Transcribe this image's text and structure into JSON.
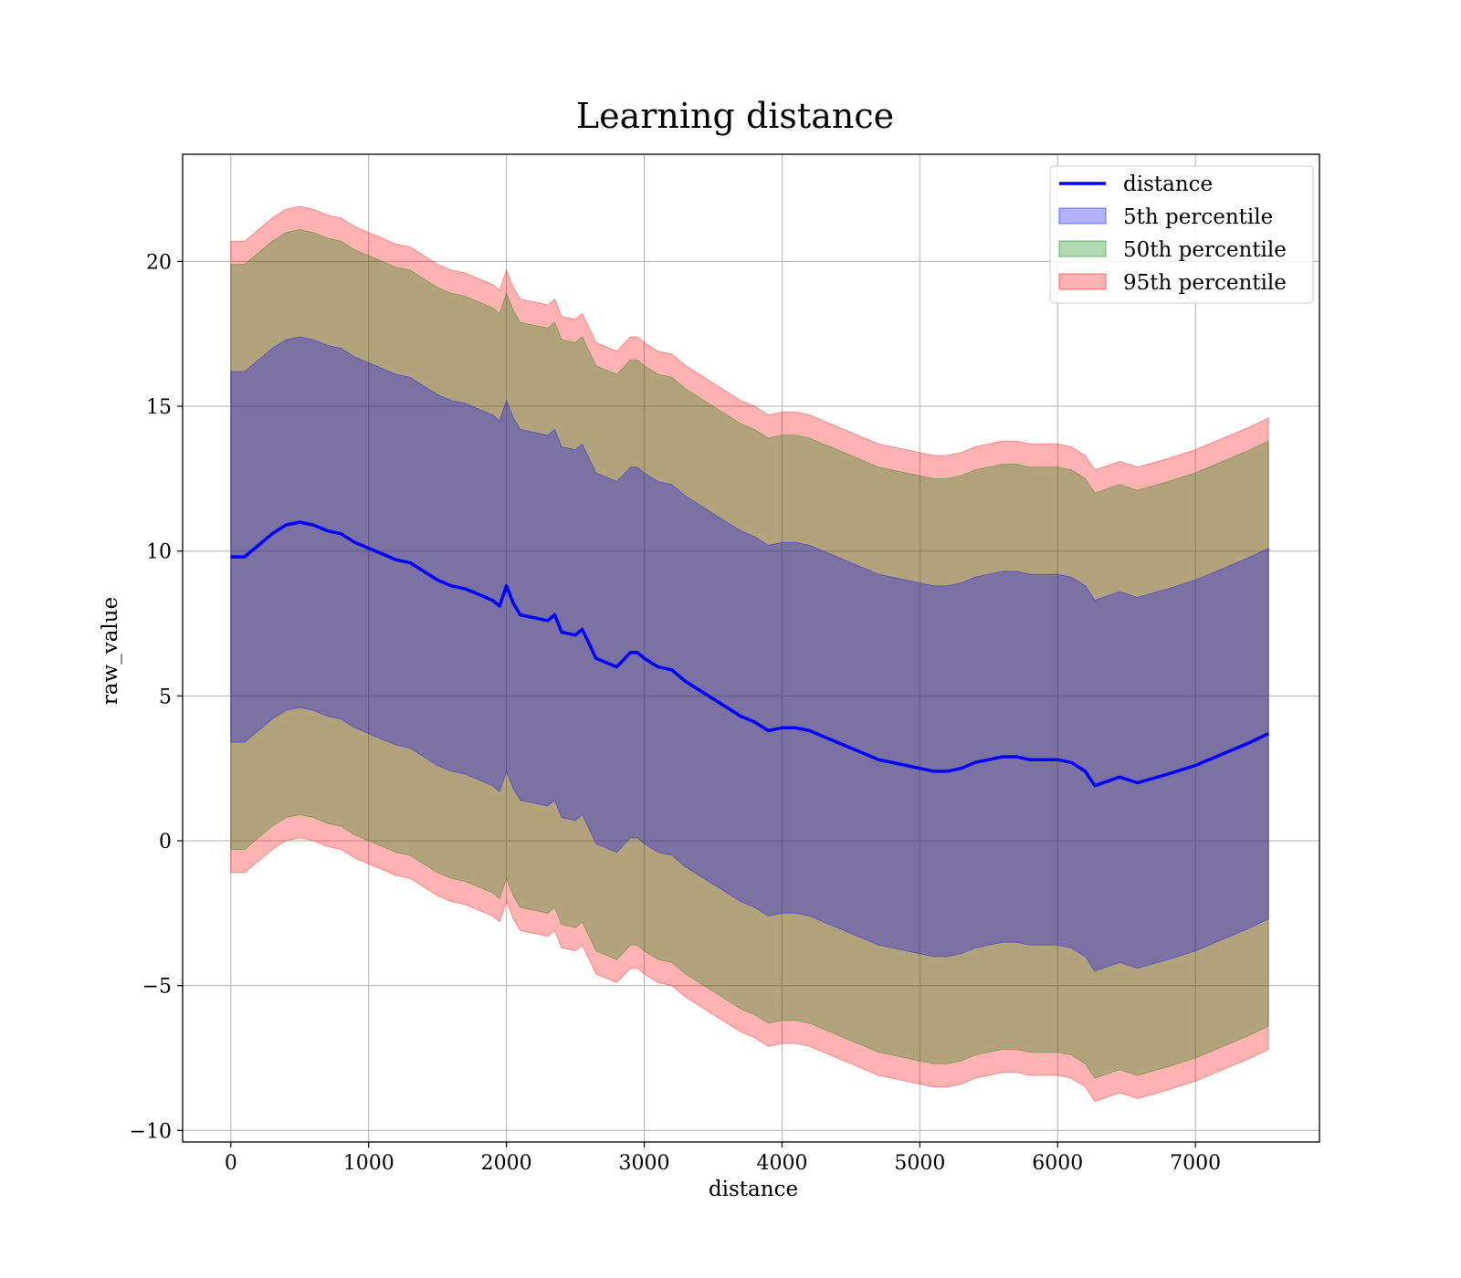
{
  "chart_data": {
    "type": "area",
    "title": "Learning distance",
    "xlabel": "distance",
    "ylabel": "raw_value",
    "xlim": [
      -350,
      7900
    ],
    "ylim": [
      -10.4,
      23.7
    ],
    "x_ticks": [
      0,
      1000,
      2000,
      3000,
      4000,
      5000,
      6000,
      7000
    ],
    "x_tick_labels": [
      "0",
      "1000",
      "2000",
      "3000",
      "4000",
      "5000",
      "6000",
      "7000"
    ],
    "y_ticks": [
      -10,
      -5,
      0,
      5,
      10,
      15,
      20
    ],
    "y_tick_labels": [
      "−10",
      "−5",
      "0",
      "5",
      "10",
      "15",
      "20"
    ],
    "grid": true,
    "legend_position": "top-right",
    "x": [
      0,
      100,
      200,
      300,
      400,
      500,
      600,
      700,
      800,
      900,
      1000,
      1100,
      1200,
      1300,
      1400,
      1500,
      1600,
      1700,
      1800,
      1900,
      1950,
      2000,
      2050,
      2100,
      2200,
      2300,
      2350,
      2400,
      2500,
      2550,
      2600,
      2650,
      2700,
      2800,
      2900,
      2950,
      3000,
      3100,
      3200,
      3300,
      3400,
      3500,
      3600,
      3700,
      3800,
      3900,
      4000,
      4100,
      4200,
      4300,
      4400,
      4500,
      4600,
      4700,
      4800,
      4900,
      5000,
      5100,
      5200,
      5300,
      5400,
      5500,
      5600,
      5700,
      5800,
      5900,
      6000,
      6100,
      6200,
      6270,
      6450,
      6580,
      6800,
      7000,
      7200,
      7400,
      7530
    ],
    "series": [
      {
        "name": "distance",
        "kind": "line",
        "color": "#0000ff",
        "values": [
          9.8,
          9.8,
          10.2,
          10.6,
          10.9,
          11.0,
          10.9,
          10.7,
          10.6,
          10.3,
          10.1,
          9.9,
          9.7,
          9.6,
          9.3,
          9.0,
          8.8,
          8.7,
          8.5,
          8.3,
          8.1,
          8.8,
          8.2,
          7.8,
          7.7,
          7.6,
          7.8,
          7.2,
          7.1,
          7.3,
          6.8,
          6.3,
          6.2,
          6.0,
          6.5,
          6.5,
          6.3,
          6.0,
          5.9,
          5.5,
          5.2,
          4.9,
          4.6,
          4.3,
          4.1,
          3.8,
          3.9,
          3.9,
          3.8,
          3.6,
          3.4,
          3.2,
          3.0,
          2.8,
          2.7,
          2.6,
          2.5,
          2.4,
          2.4,
          2.5,
          2.7,
          2.8,
          2.9,
          2.9,
          2.8,
          2.8,
          2.8,
          2.7,
          2.4,
          1.9,
          2.2,
          2.0,
          2.3,
          2.6,
          3.0,
          3.4,
          3.7
        ]
      },
      {
        "name": "5th percentile",
        "kind": "band",
        "color": "#0000ff",
        "half_width": 6.4
      },
      {
        "name": "50th percentile",
        "kind": "band",
        "color": "#008000",
        "half_width": 10.1
      },
      {
        "name": "95th percentile",
        "kind": "band",
        "color": "#ff0000",
        "half_width": 10.9
      }
    ]
  }
}
